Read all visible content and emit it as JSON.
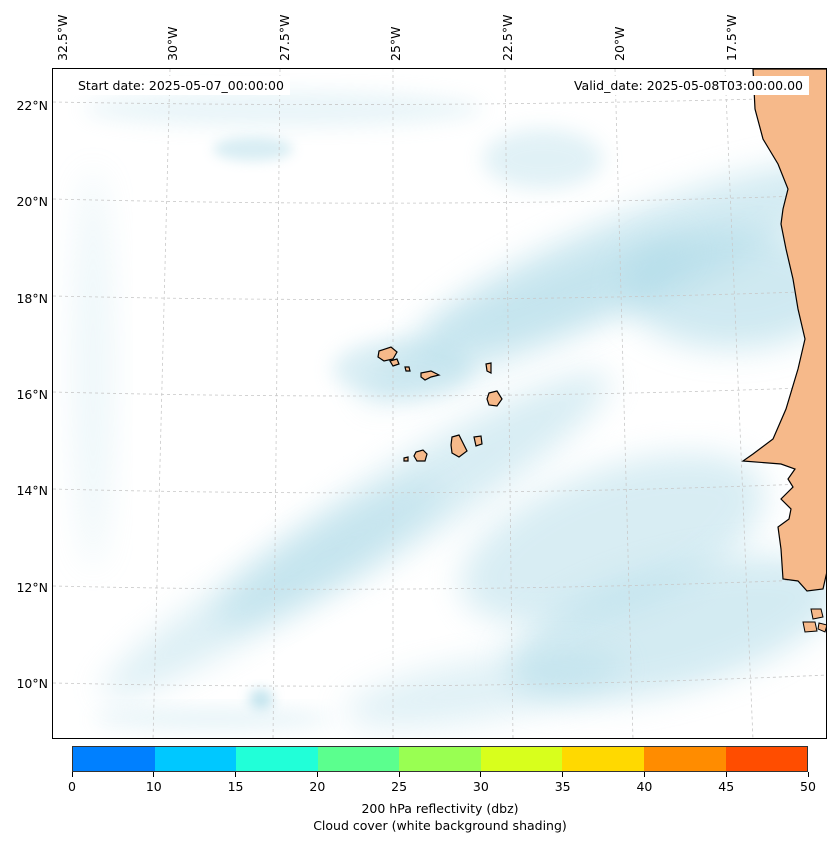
{
  "map": {
    "start_date": "Start date: 2025-05-07_00:00:00",
    "valid_date": "Valid_date: 2025-05-08T03:00:00.00",
    "lon_labels": [
      "32.5°W",
      "30°W",
      "27.5°W",
      "25°W",
      "22.5°W",
      "20°W",
      "17.5°W"
    ],
    "lat_labels": [
      "22°N",
      "20°N",
      "18°N",
      "16°N",
      "14°N",
      "12°N",
      "10°N"
    ],
    "land_color": "#f6b98a",
    "cloud_color": "#a9d8e6"
  },
  "colorbar": {
    "ticks": [
      "0",
      "10",
      "15",
      "20",
      "25",
      "30",
      "35",
      "40",
      "45",
      "50"
    ],
    "colors": [
      "#0080ff",
      "#00c8ff",
      "#21ffd8",
      "#5bff8e",
      "#99ff52",
      "#d8ff1c",
      "#ffd900",
      "#ff8c00",
      "#ff4d00"
    ],
    "label": "200 hPa reflectivity (dbz)",
    "sublabel": "Cloud cover (white background shading)"
  }
}
